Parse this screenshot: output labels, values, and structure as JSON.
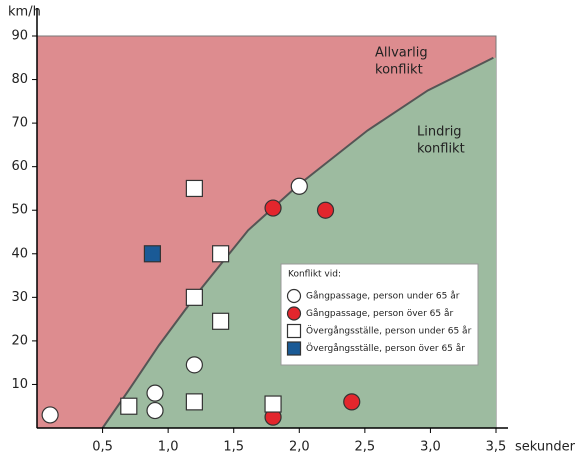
{
  "chart_data": {
    "type": "scatter",
    "ylabel": "km/h",
    "xlabel": "sekunder",
    "xlim": [
      0,
      3.5
    ],
    "ylim": [
      0,
      90
    ],
    "xticks": [
      {
        "value": 0.5,
        "label": "0,5"
      },
      {
        "value": 1.0,
        "label": "1,0"
      },
      {
        "value": 1.5,
        "label": "1,5"
      },
      {
        "value": 2.0,
        "label": "2,0"
      },
      {
        "value": 2.5,
        "label": "2,5"
      },
      {
        "value": 3.0,
        "label": "3,0"
      },
      {
        "value": 3.5,
        "label": "3,5"
      }
    ],
    "yticks": [
      10,
      20,
      30,
      40,
      50,
      60,
      70,
      80,
      90
    ],
    "region_colors": {
      "above": "#dd8c8f",
      "below": "#9dbba0"
    },
    "boundary": {
      "color": "#555555",
      "x": [
        0.5,
        0.7,
        0.93,
        1.23,
        1.61,
        1.99,
        2.52,
        2.98,
        3.48
      ],
      "y": [
        0,
        8.7,
        19,
        31.2,
        45.4,
        55.7,
        68.3,
        77.5,
        85
      ]
    },
    "annotations": [
      {
        "lines": [
          "Allvarlig",
          "konflikt"
        ]
      },
      {
        "lines": [
          "Lindrig",
          "konflikt"
        ]
      }
    ],
    "legend_title": "Konflikt vid:",
    "series": [
      {
        "name": "Gångpassage, person under 65 år",
        "marker": "circle",
        "color": "#ffffff",
        "x": [
          0.1,
          0.9,
          0.9,
          1.2,
          2.0
        ],
        "y": [
          3,
          8,
          4,
          14.5,
          55.5
        ]
      },
      {
        "name": "Gångpassage, person över 65 år",
        "marker": "circle",
        "color": "#e3262d",
        "x": [
          1.8,
          2.2,
          1.8,
          2.4
        ],
        "y": [
          50.5,
          50,
          2.5,
          6
        ]
      },
      {
        "name": "Övergångsställe, person under 65 år",
        "marker": "square",
        "color": "#ffffff",
        "x": [
          1.2,
          1.4,
          1.2,
          1.4,
          0.7,
          1.2,
          1.8
        ],
        "y": [
          55,
          40,
          30,
          24.5,
          5,
          6,
          5.5
        ]
      },
      {
        "name": "Övergångsställe, person över 65 år",
        "marker": "square",
        "color": "#1a5a96",
        "x": [
          0.88
        ],
        "y": [
          40
        ]
      }
    ]
  }
}
